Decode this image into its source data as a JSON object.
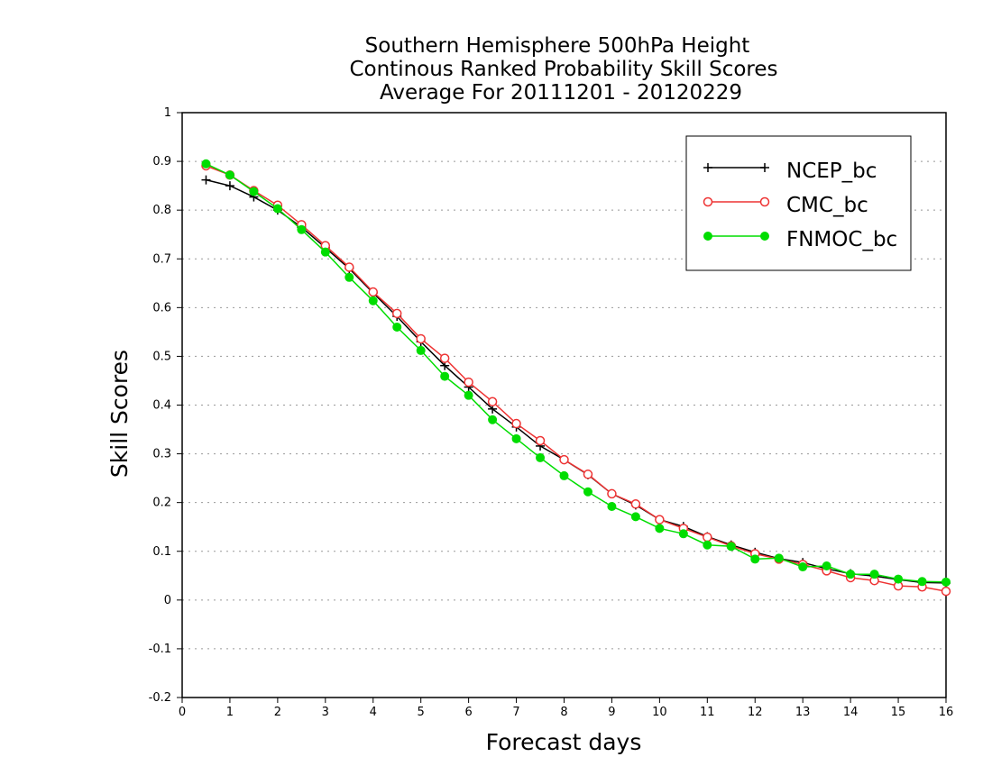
{
  "chart_data": {
    "type": "line",
    "title": [
      "Southern Hemisphere 500hPa Height",
      "Continous Ranked Probability Skill Scores",
      "Average For 20111201 - 20120229"
    ],
    "xlabel": "Forecast days",
    "ylabel": "Skill Scores",
    "xlim": [
      0,
      16
    ],
    "ylim": [
      -0.2,
      1
    ],
    "xticks": [
      "0",
      "1",
      "2",
      "3",
      "4",
      "5",
      "6",
      "7",
      "8",
      "9",
      "10",
      "11",
      "12",
      "13",
      "14",
      "15",
      "16"
    ],
    "yticks": [
      "-0.2",
      "-0.1",
      "0",
      "0.1",
      "0.2",
      "0.3",
      "0.4",
      "0.5",
      "0.6",
      "0.7",
      "0.8",
      "0.9",
      "1"
    ],
    "x": [
      0.5,
      1,
      1.5,
      2,
      2.5,
      3,
      3.5,
      4,
      4.5,
      5,
      5.5,
      6,
      6.5,
      7,
      7.5,
      8,
      8.5,
      9,
      9.5,
      10,
      10.5,
      11,
      11.5,
      12,
      12.5,
      13,
      13.5,
      14,
      14.5,
      15,
      15.5,
      16
    ],
    "grid": true,
    "legend_position": "top-right",
    "series": [
      {
        "name": "NCEP_bc",
        "color": "#000000",
        "marker": "plus",
        "values": [
          0.862,
          0.85,
          0.827,
          0.8,
          0.765,
          0.723,
          0.68,
          0.63,
          0.582,
          0.53,
          0.481,
          0.437,
          0.392,
          0.355,
          0.316,
          0.288,
          0.257,
          0.218,
          0.195,
          0.165,
          0.151,
          0.13,
          0.113,
          0.098,
          0.085,
          0.077,
          0.064,
          0.054,
          0.049,
          0.042,
          0.036,
          0.035
        ]
      },
      {
        "name": "CMC_bc",
        "color": "#ee3333",
        "marker": "open-circle",
        "values": [
          0.891,
          0.872,
          0.84,
          0.81,
          0.77,
          0.727,
          0.683,
          0.632,
          0.588,
          0.536,
          0.496,
          0.447,
          0.407,
          0.362,
          0.327,
          0.288,
          0.258,
          0.218,
          0.197,
          0.165,
          0.147,
          0.129,
          0.111,
          0.095,
          0.084,
          0.073,
          0.06,
          0.046,
          0.04,
          0.029,
          0.027,
          0.018
        ]
      },
      {
        "name": "FNMOC_bc",
        "color": "#00dd00",
        "marker": "filled-circle",
        "values": [
          0.895,
          0.872,
          0.838,
          0.803,
          0.76,
          0.714,
          0.662,
          0.614,
          0.56,
          0.512,
          0.459,
          0.42,
          0.37,
          0.331,
          0.292,
          0.255,
          0.222,
          0.192,
          0.171,
          0.147,
          0.136,
          0.113,
          0.11,
          0.084,
          0.086,
          0.068,
          0.07,
          0.053,
          0.053,
          0.043,
          0.038,
          0.037
        ]
      }
    ]
  }
}
